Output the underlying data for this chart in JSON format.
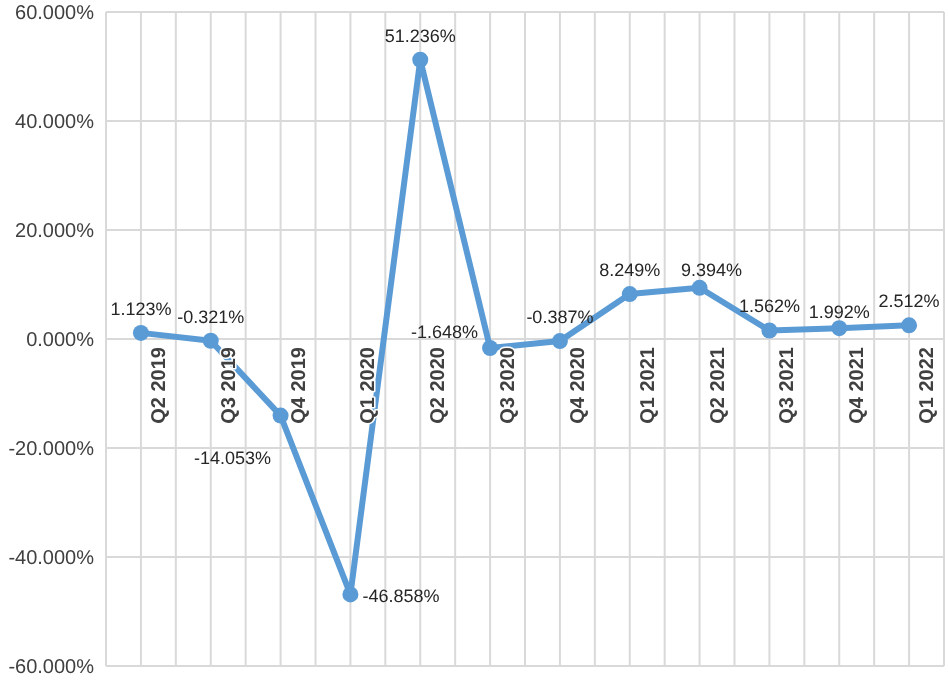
{
  "chart_data": {
    "type": "line",
    "categories": [
      "Q2 2019",
      "Q3 2019",
      "Q4 2019",
      "Q1 2020",
      "Q2 2020",
      "Q3 2020",
      "Q4 2020",
      "Q1 2021",
      "Q2 2021",
      "Q3 2021",
      "Q4 2021",
      "Q1 2022"
    ],
    "series": [
      {
        "color": "#5b9bd5",
        "values": [
          1.123,
          -0.321,
          -14.053,
          -46.858,
          51.236,
          -1.648,
          -0.387,
          8.249,
          9.394,
          1.562,
          1.992,
          2.512
        ]
      }
    ],
    "value_labels": [
      "1.123%",
      "-0.321%",
      "-14.053%",
      "-46.858%",
      "51.236%",
      "-1.648%",
      "-0.387%",
      "8.249%",
      "9.394%",
      "1.562%",
      "1.992%",
      "2.512%"
    ],
    "ylim": [
      -60,
      60
    ],
    "yticks": [
      {
        "value": -60,
        "label": "-60.000%"
      },
      {
        "value": -40,
        "label": "-40.000%"
      },
      {
        "value": -20,
        "label": "-20.000%"
      },
      {
        "value": 0,
        "label": "0.000%"
      },
      {
        "value": 20,
        "label": "20.000%"
      },
      {
        "value": 40,
        "label": "40.000%"
      },
      {
        "value": 60,
        "label": "60.000%"
      }
    ],
    "grid": true,
    "marker": "circle",
    "line_style": "solid"
  }
}
